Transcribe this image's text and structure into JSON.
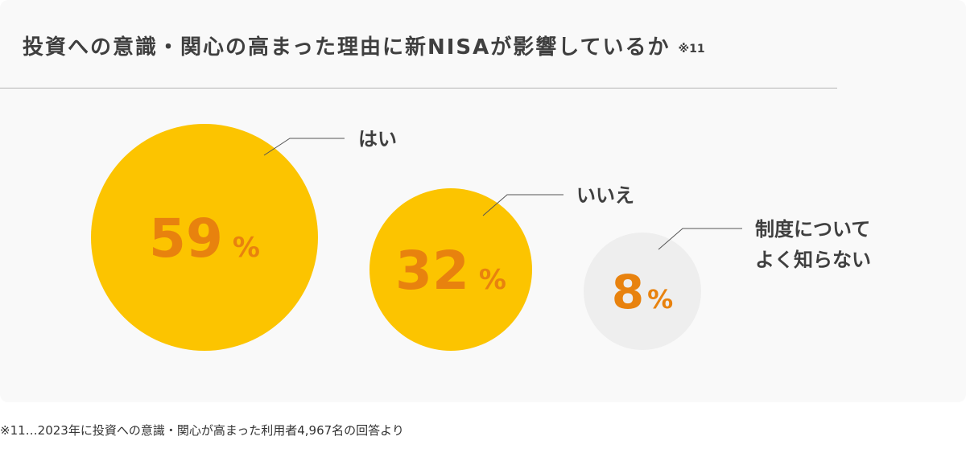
{
  "header": {
    "title": "投資への意識・関心の高まった理由に新NISAが影響しているか",
    "title_note": "※11"
  },
  "footnote": "※11…2023年に投資への意識・関心が高まった利用者4,967名の回答より",
  "colors": {
    "bubble_primary": "#fcc400",
    "bubble_muted": "#eeeeee",
    "value_text": "#e8820e",
    "label_text": "#3f3f3f",
    "leader_line": "#555555"
  },
  "chart_data": {
    "type": "bubble",
    "unit": "%",
    "series": [
      {
        "label": [
          "はい"
        ],
        "value": 59
      },
      {
        "label": [
          "いいえ"
        ],
        "value": 32
      },
      {
        "label": [
          "制度について",
          "よく知らない"
        ],
        "value": 8
      }
    ]
  }
}
